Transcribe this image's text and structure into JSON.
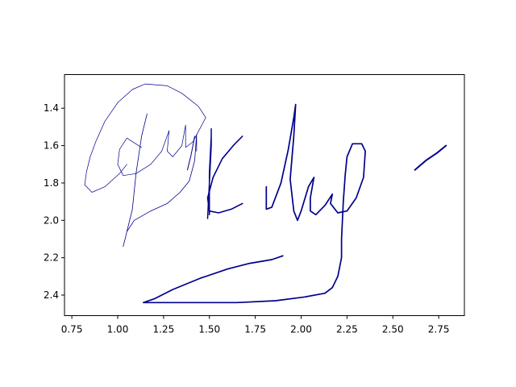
{
  "chart_data": {
    "type": "line",
    "title": "",
    "xlabel": "",
    "ylabel": "",
    "xlim": [
      0.71,
      2.89
    ],
    "ylim": [
      2.51,
      1.22
    ],
    "y_inverted": true,
    "grid": false,
    "legend": "none",
    "line_color": "#00008b",
    "x_ticks": [
      0.75,
      1.0,
      1.25,
      1.5,
      1.75,
      2.0,
      2.25,
      2.5,
      2.75
    ],
    "x_tick_labels": [
      "0.75",
      "1.00",
      "1.25",
      "1.50",
      "1.75",
      "2.00",
      "2.25",
      "2.50",
      "2.75"
    ],
    "y_ticks": [
      1.4,
      1.6,
      1.8,
      2.0,
      2.2,
      2.4
    ],
    "y_tick_labels": [
      "1.4",
      "1.6",
      "1.8",
      "2.0",
      "2.2",
      "2.4"
    ],
    "series": [
      {
        "width": 0.7,
        "points": [
          [
            1.13,
            1.61
          ],
          [
            1.05,
            1.56
          ],
          [
            1.01,
            1.62
          ],
          [
            1.0,
            1.7
          ],
          [
            1.03,
            1.76
          ],
          [
            1.1,
            1.75
          ],
          [
            1.18,
            1.7
          ],
          [
            1.24,
            1.63
          ],
          [
            1.28,
            1.52
          ],
          [
            1.27,
            1.63
          ],
          [
            1.3,
            1.66
          ],
          [
            1.35,
            1.6
          ],
          [
            1.37,
            1.49
          ],
          [
            1.37,
            1.61
          ],
          [
            1.41,
            1.58
          ],
          [
            1.48,
            1.45
          ],
          [
            1.44,
            1.39
          ],
          [
            1.35,
            1.32
          ],
          [
            1.27,
            1.28
          ],
          [
            1.15,
            1.27
          ],
          [
            1.08,
            1.3
          ],
          [
            1.0,
            1.37
          ],
          [
            0.93,
            1.47
          ],
          [
            0.88,
            1.58
          ],
          [
            0.85,
            1.66
          ],
          [
            0.83,
            1.74
          ],
          [
            0.82,
            1.81
          ],
          [
            0.86,
            1.85
          ],
          [
            0.93,
            1.82
          ],
          [
            1.01,
            1.75
          ],
          [
            1.05,
            1.7
          ]
        ]
      },
      {
        "width": 0.8,
        "points": [
          [
            1.16,
            1.43
          ],
          [
            1.13,
            1.55
          ],
          [
            1.1,
            1.75
          ],
          [
            1.08,
            1.94
          ],
          [
            1.04,
            2.1
          ],
          [
            1.03,
            2.14
          ],
          [
            1.05,
            2.06
          ],
          [
            1.09,
            2.0
          ],
          [
            1.18,
            1.95
          ],
          [
            1.27,
            1.91
          ],
          [
            1.34,
            1.85
          ],
          [
            1.39,
            1.79
          ],
          [
            1.42,
            1.68
          ],
          [
            1.43,
            1.54
          ],
          [
            1.43,
            1.63
          ]
        ]
      },
      {
        "width": 1.0,
        "points": [
          [
            1.38,
            1.73
          ],
          [
            1.4,
            1.65
          ],
          [
            1.42,
            1.55
          ]
        ]
      },
      {
        "width": 1.5,
        "points": [
          [
            1.49,
            1.99
          ],
          [
            1.5,
            1.8
          ],
          [
            1.51,
            1.6
          ],
          [
            1.51,
            1.51
          ],
          [
            1.51,
            1.55
          ],
          [
            1.5,
            1.75
          ],
          [
            1.5,
            1.9
          ],
          [
            1.5,
            1.97
          ]
        ]
      },
      {
        "width": 1.6,
        "points": [
          [
            1.68,
            1.55
          ],
          [
            1.63,
            1.6
          ],
          [
            1.57,
            1.67
          ],
          [
            1.52,
            1.77
          ],
          [
            1.49,
            1.88
          ],
          [
            1.5,
            1.95
          ],
          [
            1.55,
            1.96
          ],
          [
            1.62,
            1.94
          ],
          [
            1.68,
            1.91
          ]
        ]
      },
      {
        "width": 1.7,
        "points": [
          [
            1.81,
            1.82
          ],
          [
            1.81,
            1.94
          ],
          [
            1.84,
            1.93
          ],
          [
            1.89,
            1.8
          ],
          [
            1.93,
            1.62
          ],
          [
            1.96,
            1.45
          ],
          [
            1.97,
            1.38
          ],
          [
            1.96,
            1.55
          ],
          [
            1.94,
            1.78
          ],
          [
            1.96,
            1.95
          ],
          [
            1.98,
            2.0
          ],
          [
            2.0,
            1.95
          ],
          [
            2.04,
            1.82
          ],
          [
            2.07,
            1.77
          ],
          [
            2.05,
            1.88
          ],
          [
            2.05,
            1.95
          ],
          [
            2.08,
            1.97
          ],
          [
            2.13,
            1.92
          ],
          [
            2.17,
            1.86
          ],
          [
            2.16,
            1.91
          ],
          [
            2.2,
            1.96
          ],
          [
            2.25,
            1.95
          ],
          [
            2.3,
            1.88
          ],
          [
            2.34,
            1.77
          ],
          [
            2.35,
            1.63
          ],
          [
            2.33,
            1.59
          ],
          [
            2.28,
            1.59
          ],
          [
            2.25,
            1.66
          ],
          [
            2.24,
            1.76
          ],
          [
            2.23,
            1.9
          ],
          [
            2.22,
            2.1
          ],
          [
            2.22,
            2.2
          ],
          [
            2.2,
            2.3
          ],
          [
            2.17,
            2.36
          ],
          [
            2.13,
            2.39
          ],
          [
            2.02,
            2.41
          ],
          [
            1.86,
            2.43
          ],
          [
            1.65,
            2.44
          ],
          [
            1.4,
            2.44
          ],
          [
            1.24,
            2.44
          ],
          [
            1.14,
            2.44
          ],
          [
            1.2,
            2.42
          ],
          [
            1.3,
            2.37
          ],
          [
            1.45,
            2.31
          ],
          [
            1.6,
            2.26
          ],
          [
            1.72,
            2.23
          ],
          [
            1.84,
            2.21
          ],
          [
            1.9,
            2.19
          ]
        ]
      },
      {
        "width": 2.0,
        "points": [
          [
            2.62,
            1.73
          ],
          [
            2.68,
            1.68
          ],
          [
            2.74,
            1.64
          ],
          [
            2.79,
            1.6
          ]
        ]
      }
    ]
  }
}
